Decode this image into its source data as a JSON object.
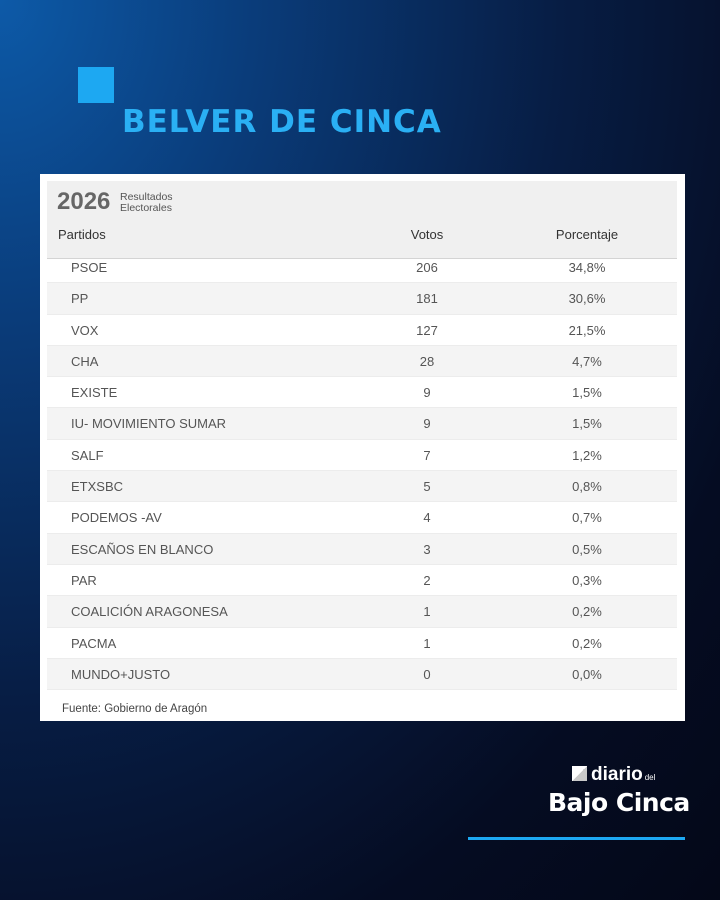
{
  "header": {
    "title": "BELVER DE CINCA"
  },
  "table": {
    "year": "2026",
    "subtitle_line1": "Resultados",
    "subtitle_line2": "Electorales",
    "columns": {
      "party": "Partidos",
      "votes": "Votos",
      "percent": "Porcentaje"
    },
    "rows": [
      {
        "party": "PSOE",
        "votes": "206",
        "percent": "34,8%"
      },
      {
        "party": "PP",
        "votes": "181",
        "percent": "30,6%"
      },
      {
        "party": "VOX",
        "votes": "127",
        "percent": "21,5%"
      },
      {
        "party": "CHA",
        "votes": "28",
        "percent": "4,7%"
      },
      {
        "party": "EXISTE",
        "votes": "9",
        "percent": "1,5%"
      },
      {
        "party": "IU- MOVIMIENTO SUMAR",
        "votes": "9",
        "percent": "1,5%"
      },
      {
        "party": "SALF",
        "votes": "7",
        "percent": "1,2%"
      },
      {
        "party": "ETXSBC",
        "votes": "5",
        "percent": "0,8%"
      },
      {
        "party": "PODEMOS -AV",
        "votes": "4",
        "percent": "0,7%"
      },
      {
        "party": "ESCAÑOS EN BLANCO",
        "votes": "3",
        "percent": "0,5%"
      },
      {
        "party": "PAR",
        "votes": "2",
        "percent": "0,3%"
      },
      {
        "party": "COALICIÓN ARAGONESA",
        "votes": "1",
        "percent": "0,2%"
      },
      {
        "party": "PACMA",
        "votes": "1",
        "percent": "0,2%"
      },
      {
        "party": "MUNDO+JUSTO",
        "votes": "0",
        "percent": "0,0%"
      }
    ],
    "source": "Fuente: Gobierno de Aragón"
  },
  "brand": {
    "line1": "diario",
    "del": "del",
    "line2": "Bajo Cinca"
  },
  "colors": {
    "accent": "#1da8f2",
    "title": "#2ab0f4",
    "background": "#061a3d"
  }
}
